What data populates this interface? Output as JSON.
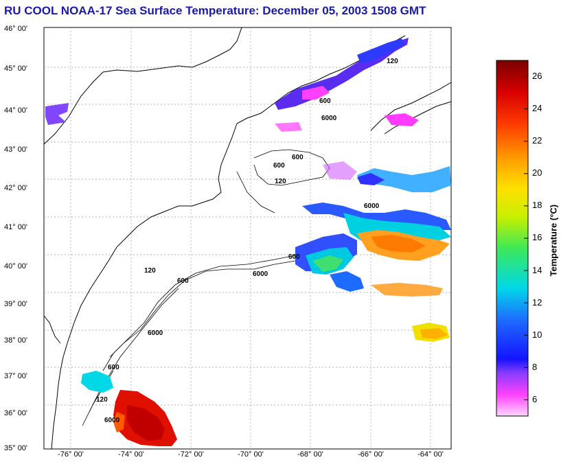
{
  "title": "RU COOL  NOAA-17  Sea Surface Temperature:  December 05, 2003 1508 GMT",
  "map": {
    "lat_labels": [
      {
        "lat": 46,
        "label": "46° 00'"
      },
      {
        "lat": 45,
        "label": "45° 00'"
      },
      {
        "lat": 44,
        "label": "44° 00'"
      },
      {
        "lat": 43,
        "label": "43° 00'"
      },
      {
        "lat": 42,
        "label": "42° 00'"
      },
      {
        "lat": 41,
        "label": "41° 00'"
      },
      {
        "lat": 40,
        "label": "40° 00'"
      },
      {
        "lat": 39,
        "label": "39° 00'"
      },
      {
        "lat": 38,
        "label": "38° 00'"
      },
      {
        "lat": 37,
        "label": "37° 00'"
      },
      {
        "lat": 36,
        "label": "36° 00'"
      },
      {
        "lat": 35,
        "label": "35° 00'"
      }
    ],
    "lon_labels": [
      {
        "lon": -76,
        "label": "-76° 00'"
      },
      {
        "lon": -74,
        "label": "-74° 00'"
      },
      {
        "lon": -72,
        "label": "-72° 00'"
      },
      {
        "lon": -70,
        "label": "-70° 00'"
      },
      {
        "lon": -68,
        "label": "-68° 00'"
      },
      {
        "lon": -66,
        "label": "-66° 00'"
      },
      {
        "lon": -64,
        "label": "-64° 00'"
      }
    ],
    "contour_labels": [
      "120",
      "600",
      "6000",
      "600",
      "600",
      "120",
      "6000",
      "600",
      "6000",
      "120",
      "600",
      "6000",
      "600",
      "120",
      "6000"
    ],
    "grid": true
  },
  "colorbar": {
    "label": "Temperature (°C)",
    "min": 5,
    "max": 27,
    "ticks": [
      {
        "value": 26,
        "label": "26"
      },
      {
        "value": 24,
        "label": "24"
      },
      {
        "value": 22,
        "label": "22"
      },
      {
        "value": 20,
        "label": "20"
      },
      {
        "value": 18,
        "label": "18"
      },
      {
        "value": 16,
        "label": "16"
      },
      {
        "value": 14,
        "label": "14"
      },
      {
        "value": 12,
        "label": "12"
      },
      {
        "value": 10,
        "label": "10"
      },
      {
        "value": 8,
        "label": "8"
      },
      {
        "value": 6,
        "label": "6"
      }
    ],
    "colors": [
      "#ffd0ff",
      "#ff3cff",
      "#a040ff",
      "#1010ff",
      "#2aa0ff",
      "#00e6e6",
      "#40f040",
      "#e6ff00",
      "#ffb000",
      "#ff4000",
      "#d00000",
      "#7a0000"
    ]
  }
}
